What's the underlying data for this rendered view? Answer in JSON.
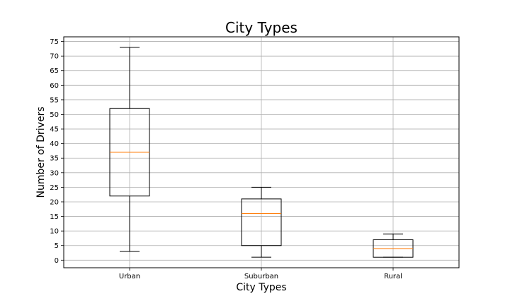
{
  "chart_data": {
    "type": "box",
    "title": "City Types",
    "xlabel": "City Types",
    "ylabel": "Number of Drivers",
    "categories": [
      "Urban",
      "Suburban",
      "Rural"
    ],
    "boxes": [
      {
        "category": "Urban",
        "whisker_low": 3,
        "q1": 22,
        "median": 37,
        "q3": 52,
        "whisker_high": 73
      },
      {
        "category": "Suburban",
        "whisker_low": 1,
        "q1": 5,
        "median": 16,
        "q3": 21,
        "whisker_high": 25
      },
      {
        "category": "Rural",
        "whisker_low": 1,
        "q1": 1,
        "median": 4,
        "q3": 7,
        "whisker_high": 9
      }
    ],
    "ylim": [
      -2.6,
      76.6
    ],
    "yticks": [
      "0",
      "5",
      "10",
      "15",
      "20",
      "25",
      "30",
      "35",
      "40",
      "45",
      "50",
      "55",
      "60",
      "65",
      "70",
      "75"
    ],
    "grid": true,
    "colors": {
      "box": "#000000",
      "median": "#ff7f0e",
      "grid": "#b0b0b0"
    }
  }
}
